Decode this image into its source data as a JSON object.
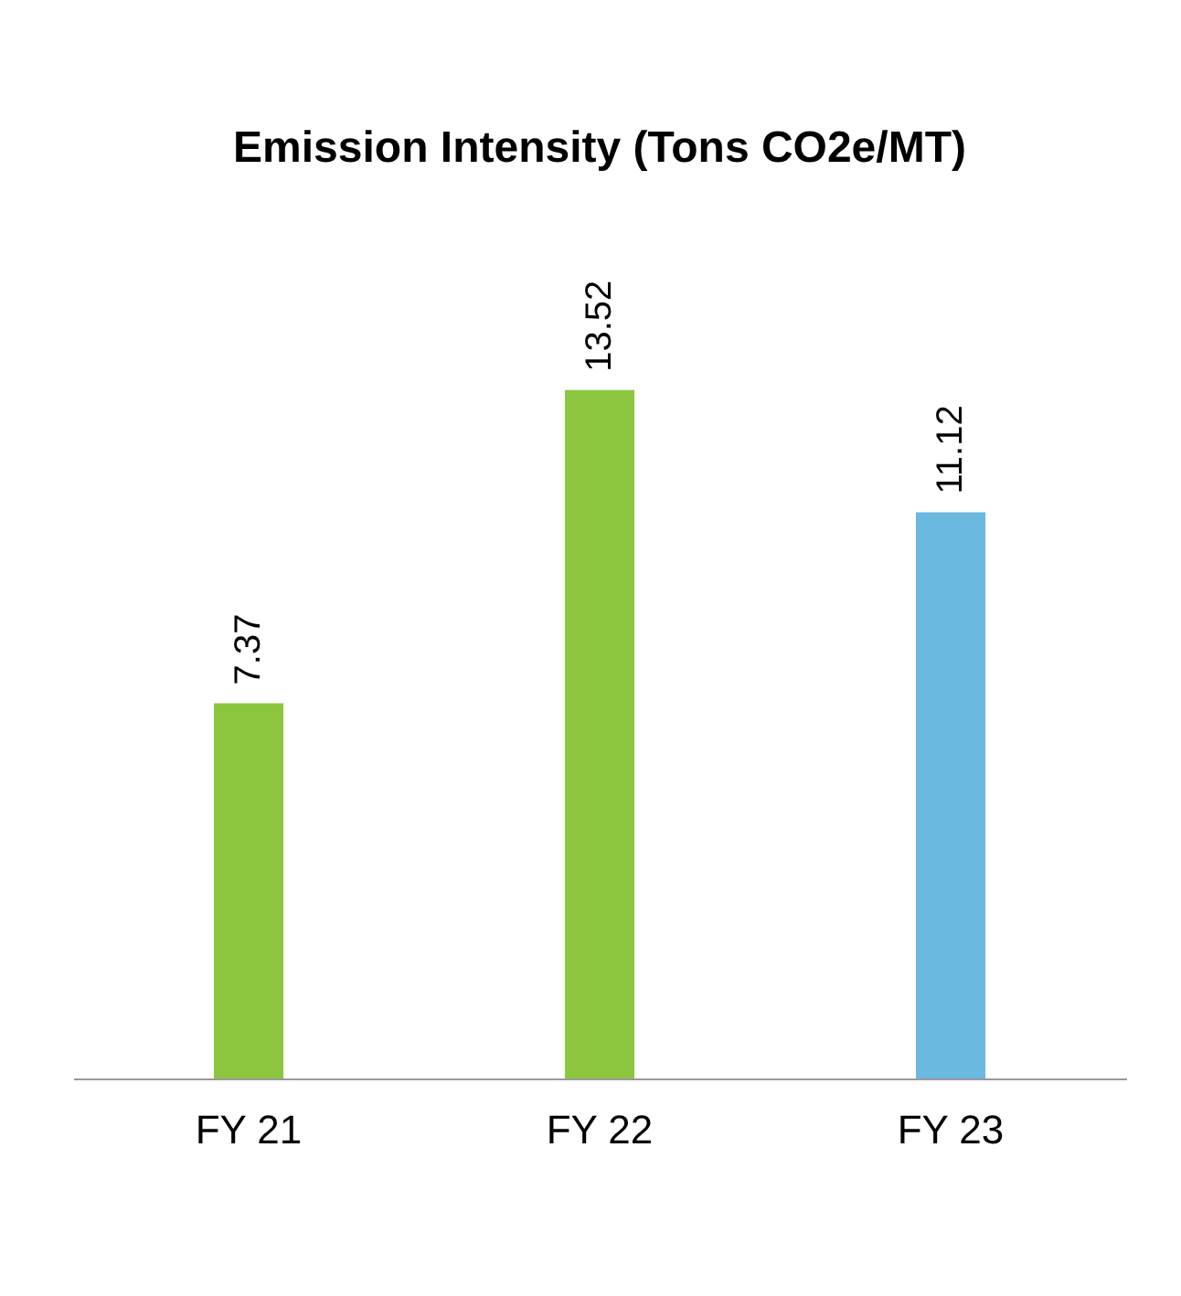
{
  "chart_data": {
    "type": "bar",
    "title": "Emission Intensity (Tons CO2e/MT)",
    "categories": [
      "FY 21",
      "FY 22",
      "FY 23"
    ],
    "values": [
      7.37,
      13.52,
      11.12
    ],
    "colors": [
      "#8cc63f",
      "#8cc63f",
      "#6bb8e0"
    ],
    "data_labels": true,
    "tick_labels": "x",
    "grid": false
  }
}
